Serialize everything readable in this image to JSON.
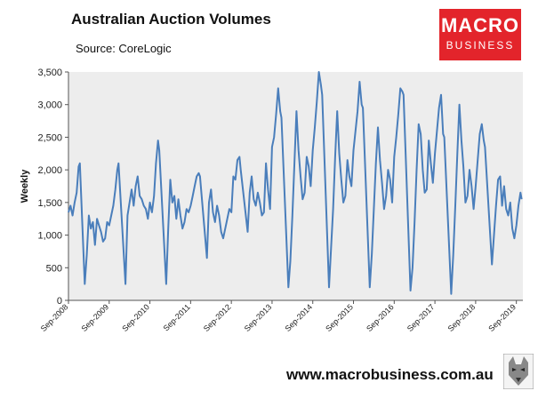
{
  "header": {
    "title": "Australian Auction Volumes",
    "source": "Source: CoreLogic"
  },
  "brand": {
    "logo_line1": "MACRO",
    "logo_line2": "BUSINESS",
    "logo_color": "#e3242b",
    "website": "www.macrobusiness.com.au",
    "mascot_icon": "wolf-icon"
  },
  "chart_data": {
    "type": "line",
    "title": "Australian Auction Volumes",
    "ylabel": "Weekly",
    "xlabel": "",
    "ylim": [
      0,
      3500
    ],
    "yticks": [
      0,
      500,
      1000,
      1500,
      2000,
      2500,
      3000,
      3500
    ],
    "ytick_labels": [
      "0",
      "500",
      "1,000",
      "1,500",
      "2,000",
      "2,500",
      "3,000",
      "3,500"
    ],
    "xlim": [
      2008.67,
      2019.83
    ],
    "xticks": [
      2008.67,
      2009.67,
      2010.67,
      2011.67,
      2012.67,
      2013.67,
      2014.67,
      2015.67,
      2016.67,
      2017.67,
      2018.67,
      2019.67
    ],
    "xtick_labels": [
      "Sep-2008",
      "Sep-2009",
      "Sep-2010",
      "Sep-2011",
      "Sep-2012",
      "Sep-2013",
      "Sep-2014",
      "Sep-2015",
      "Sep-2016",
      "Sep-2017",
      "Sep-2018",
      "Sep-2019"
    ],
    "grid": false,
    "legend": "none",
    "line_color": "#4a7ebb",
    "plot_background": "#ededed",
    "series": [
      {
        "x": [
          2008.67,
          2008.72,
          2008.77,
          2008.82,
          2008.87,
          2008.92,
          2008.95,
          2009.07,
          2009.12,
          2009.17,
          2009.22,
          2009.27,
          2009.32,
          2009.37,
          2009.42,
          2009.47,
          2009.52,
          2009.57,
          2009.62,
          2009.67,
          2009.72,
          2009.77,
          2009.82,
          2009.87,
          2009.9,
          2010.07,
          2010.12,
          2010.17,
          2010.22,
          2010.27,
          2010.32,
          2010.37,
          2010.42,
          2010.47,
          2010.52,
          2010.57,
          2010.62,
          2010.67,
          2010.72,
          2010.77,
          2010.82,
          2010.87,
          2010.9,
          2011.07,
          2011.12,
          2011.17,
          2011.22,
          2011.27,
          2011.32,
          2011.37,
          2011.42,
          2011.47,
          2011.52,
          2011.57,
          2011.62,
          2011.67,
          2011.72,
          2011.77,
          2011.82,
          2011.87,
          2011.9,
          2012.07,
          2012.12,
          2012.17,
          2012.22,
          2012.27,
          2012.32,
          2012.37,
          2012.42,
          2012.47,
          2012.52,
          2012.57,
          2012.62,
          2012.67,
          2012.72,
          2012.77,
          2012.82,
          2012.87,
          2012.9,
          2013.07,
          2013.12,
          2013.17,
          2013.22,
          2013.27,
          2013.32,
          2013.37,
          2013.42,
          2013.47,
          2013.52,
          2013.57,
          2013.62,
          2013.67,
          2013.72,
          2013.77,
          2013.82,
          2013.87,
          2013.9,
          2014.07,
          2014.12,
          2014.17,
          2014.22,
          2014.27,
          2014.32,
          2014.37,
          2014.42,
          2014.47,
          2014.52,
          2014.57,
          2014.62,
          2014.67,
          2014.72,
          2014.77,
          2014.82,
          2014.87,
          2014.9,
          2015.07,
          2015.12,
          2015.17,
          2015.22,
          2015.27,
          2015.32,
          2015.37,
          2015.42,
          2015.47,
          2015.52,
          2015.57,
          2015.62,
          2015.67,
          2015.72,
          2015.77,
          2015.82,
          2015.87,
          2015.9,
          2016.07,
          2016.12,
          2016.17,
          2016.22,
          2016.27,
          2016.32,
          2016.37,
          2016.42,
          2016.47,
          2016.52,
          2016.57,
          2016.62,
          2016.67,
          2016.72,
          2016.77,
          2016.82,
          2016.87,
          2016.9,
          2017.07,
          2017.12,
          2017.17,
          2017.22,
          2017.27,
          2017.32,
          2017.37,
          2017.42,
          2017.47,
          2017.52,
          2017.57,
          2017.62,
          2017.67,
          2017.72,
          2017.77,
          2017.82,
          2017.87,
          2017.9,
          2018.07,
          2018.12,
          2018.17,
          2018.22,
          2018.27,
          2018.32,
          2018.37,
          2018.42,
          2018.47,
          2018.52,
          2018.57,
          2018.62,
          2018.67,
          2018.72,
          2018.77,
          2018.82,
          2018.87,
          2018.9,
          2019.07,
          2019.12,
          2019.17,
          2019.22,
          2019.27,
          2019.32,
          2019.37,
          2019.42,
          2019.47,
          2019.52,
          2019.57,
          2019.62,
          2019.67,
          2019.72,
          2019.77,
          2019.8
        ],
        "y": [
          1350,
          1450,
          1300,
          1500,
          1650,
          2050,
          2100,
          250,
          700,
          1300,
          1100,
          1200,
          850,
          1250,
          1150,
          1050,
          900,
          950,
          1200,
          1150,
          1300,
          1450,
          1700,
          2000,
          2100,
          250,
          1300,
          1500,
          1700,
          1450,
          1750,
          1900,
          1600,
          1550,
          1450,
          1400,
          1250,
          1500,
          1350,
          1600,
          2100,
          2450,
          2300,
          250,
          1100,
          1850,
          1500,
          1600,
          1250,
          1550,
          1300,
          1100,
          1200,
          1400,
          1350,
          1450,
          1600,
          1750,
          1900,
          1950,
          1900,
          650,
          1500,
          1700,
          1350,
          1200,
          1450,
          1300,
          1050,
          950,
          1100,
          1250,
          1400,
          1350,
          1900,
          1850,
          2150,
          2200,
          2000,
          1050,
          1650,
          1900,
          1550,
          1450,
          1650,
          1500,
          1300,
          1350,
          2100,
          1700,
          1400,
          2350,
          2500,
          2850,
          3250,
          2900,
          2800,
          200,
          600,
          1300,
          2100,
          2900,
          2300,
          1900,
          1550,
          1650,
          2200,
          2050,
          1750,
          2300,
          2650,
          3050,
          3500,
          3300,
          3150,
          200,
          800,
          1400,
          2200,
          2900,
          2250,
          1850,
          1500,
          1600,
          2150,
          1900,
          1750,
          2300,
          2600,
          2900,
          3350,
          3000,
          2950,
          200,
          700,
          1400,
          2100,
          2650,
          2150,
          1800,
          1400,
          1600,
          2000,
          1850,
          1500,
          2200,
          2500,
          2850,
          3250,
          3200,
          3150,
          150,
          500,
          1200,
          2000,
          2700,
          2550,
          2000,
          1650,
          1700,
          2450,
          2100,
          1800,
          2250,
          2600,
          2950,
          3150,
          2550,
          2500,
          100,
          700,
          1450,
          2250,
          3000,
          2450,
          2050,
          1500,
          1600,
          2000,
          1750,
          1400,
          1750,
          2150,
          2550,
          2700,
          2450,
          2350,
          550,
          1000,
          1450,
          1850,
          1900,
          1450,
          1750,
          1400,
          1300,
          1500,
          1100,
          950,
          1150,
          1450,
          1650,
          1550
        ]
      }
    ]
  }
}
